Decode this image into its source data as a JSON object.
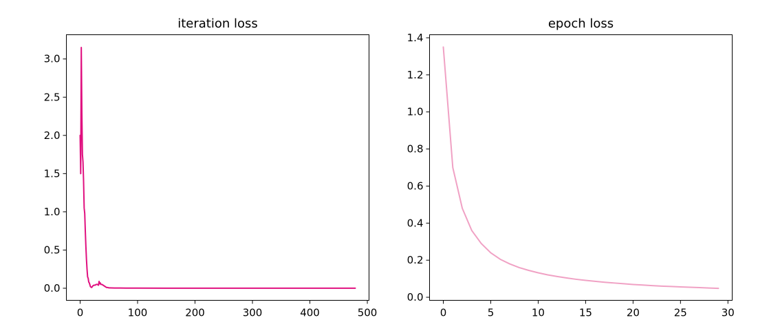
{
  "chart_data": [
    {
      "type": "line",
      "title": "iteration loss",
      "xlabel": "",
      "ylabel": "",
      "xlim": [
        -23.95,
        502.95
      ],
      "ylim": [
        -0.158,
        3.317
      ],
      "xticks": [
        0,
        100,
        200,
        300,
        400,
        500
      ],
      "yticks": [
        0.0,
        0.5,
        1.0,
        1.5,
        2.0,
        2.5,
        3.0
      ],
      "xtick_labels": [
        "0",
        "100",
        "200",
        "300",
        "400",
        "500"
      ],
      "ytick_labels": [
        "0.0",
        "0.5",
        "1.0",
        "1.5",
        "2.0",
        "2.5",
        "3.0"
      ],
      "grid": false,
      "color": "#e0107f",
      "series": [
        {
          "x": [
            0,
            1,
            2,
            3,
            4,
            5,
            6,
            7,
            8,
            9,
            10,
            11,
            12,
            13,
            14,
            15,
            16,
            18,
            20,
            22,
            24,
            26,
            28,
            30,
            32,
            33,
            34,
            35,
            36,
            38,
            40,
            42,
            44,
            46,
            48,
            50,
            55,
            60,
            70,
            80,
            100,
            150,
            200,
            300,
            400,
            479
          ],
          "y": [
            2.0,
            1.5,
            3.15,
            2.3,
            1.75,
            1.65,
            1.4,
            1.05,
            0.98,
            0.75,
            0.55,
            0.38,
            0.25,
            0.15,
            0.13,
            0.08,
            0.07,
            0.02,
            0.01,
            0.03,
            0.04,
            0.04,
            0.05,
            0.05,
            0.04,
            0.09,
            0.06,
            0.07,
            0.05,
            0.05,
            0.04,
            0.03,
            0.02,
            0.01,
            0.01,
            0.005,
            0.004,
            0.003,
            0.003,
            0.002,
            0.002,
            0.001,
            0.001,
            0.001,
            0.001,
            0.001
          ]
        }
      ]
    },
    {
      "type": "line",
      "title": "epoch loss",
      "xlabel": "",
      "ylabel": "",
      "xlim": [
        -1.45,
        30.45
      ],
      "ylim": [
        -0.0165,
        1.4165
      ],
      "xticks": [
        0,
        5,
        10,
        15,
        20,
        25,
        30
      ],
      "yticks": [
        0.0,
        0.2,
        0.4,
        0.6,
        0.8,
        1.0,
        1.2,
        1.4
      ],
      "xtick_labels": [
        "0",
        "5",
        "10",
        "15",
        "20",
        "25",
        "30"
      ],
      "ytick_labels": [
        "0.0",
        "0.2",
        "0.4",
        "0.6",
        "0.8",
        "1.0",
        "1.2",
        "1.4"
      ],
      "grid": false,
      "color": "#f0a1c4",
      "series": [
        {
          "x": [
            0,
            1,
            2,
            3,
            4,
            5,
            6,
            7,
            8,
            9,
            10,
            11,
            12,
            13,
            14,
            15,
            16,
            17,
            18,
            19,
            20,
            21,
            22,
            23,
            24,
            25,
            26,
            27,
            28,
            29
          ],
          "y": [
            1.35,
            0.7,
            0.48,
            0.36,
            0.29,
            0.24,
            0.205,
            0.18,
            0.16,
            0.145,
            0.132,
            0.121,
            0.112,
            0.104,
            0.097,
            0.091,
            0.086,
            0.081,
            0.077,
            0.073,
            0.069,
            0.066,
            0.063,
            0.06,
            0.058,
            0.056,
            0.054,
            0.052,
            0.05,
            0.048
          ]
        }
      ]
    }
  ]
}
